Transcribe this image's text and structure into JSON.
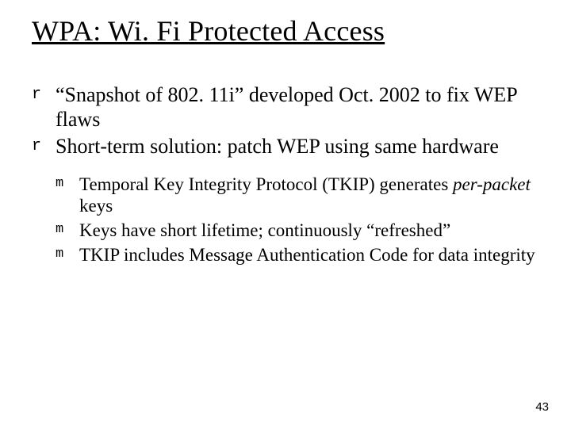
{
  "slide": {
    "title": "WPA: Wi. Fi Protected Access",
    "page_number": "43",
    "colors": {
      "background": "#ffffff",
      "text": "#000000"
    },
    "typography": {
      "title_fontsize": 36,
      "level1_fontsize": 26,
      "level2_fontsize": 23,
      "marker_font": "Courier New",
      "body_font": "Times New Roman"
    },
    "bullets": {
      "level1_marker": "r",
      "level2_marker": "m",
      "items": [
        {
          "text_parts": [
            {
              "t": "“Snapshot of 802. 11i” developed Oct. 2002 to fix WEP flaws",
              "italic": false
            }
          ]
        },
        {
          "text_parts": [
            {
              "t": "Short-term solution: patch WEP using same hardware",
              "italic": false
            }
          ],
          "children": [
            {
              "text_parts": [
                {
                  "t": "Temporal Key Integrity Protocol (TKIP) generates ",
                  "italic": false
                },
                {
                  "t": "per-packet",
                  "italic": true
                },
                {
                  "t": " keys",
                  "italic": false
                }
              ]
            },
            {
              "text_parts": [
                {
                  "t": "Keys have short lifetime; continuously “refreshed”",
                  "italic": false
                }
              ]
            },
            {
              "text_parts": [
                {
                  "t": "TKIP includes Message Authentication Code for data integrity",
                  "italic": false
                }
              ]
            }
          ]
        }
      ]
    }
  }
}
